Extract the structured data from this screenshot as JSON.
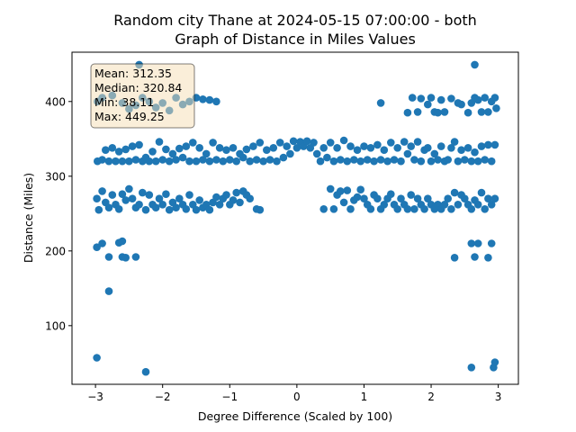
{
  "chart_data": {
    "type": "scatter",
    "title_line1": "Random city Thane at 2024-05-15 07:00:00  - both",
    "title_line2": "Graph of Distance in Miles Values",
    "xlabel": "Degree Difference (Scaled by 100)",
    "ylabel": "Distance (Miles)",
    "xlim": [
      -3.35,
      3.3
    ],
    "ylim": [
      21.5,
      466
    ],
    "xticks": [
      -3,
      -2,
      -1,
      0,
      1,
      2,
      3
    ],
    "yticks": [
      100,
      200,
      300,
      400
    ],
    "marker_color": "#1f77b4",
    "stats": {
      "mean": "Mean: 312.35",
      "median": "Median: 320.84",
      "min": "Min: 38.11",
      "max": "Max: 449.25",
      "box_fill": "#f5deb3",
      "position": "top-left"
    },
    "points": [
      [
        -2.35,
        449.3
      ],
      [
        2.65,
        449.3
      ],
      [
        -2.97,
        400
      ],
      [
        -2.9,
        405
      ],
      [
        -2.75,
        408
      ],
      [
        -2.6,
        398
      ],
      [
        -2.5,
        390
      ],
      [
        -2.4,
        395
      ],
      [
        -2.3,
        405
      ],
      [
        -2.2,
        400
      ],
      [
        -2.1,
        392
      ],
      [
        -2.0,
        398
      ],
      [
        -1.9,
        388
      ],
      [
        -1.8,
        405
      ],
      [
        -1.7,
        396
      ],
      [
        -1.6,
        400
      ],
      [
        -1.5,
        405
      ],
      [
        -1.4,
        403
      ],
      [
        -1.3,
        402
      ],
      [
        -1.2,
        400
      ],
      [
        1.25,
        398
      ],
      [
        1.65,
        385
      ],
      [
        1.72,
        405
      ],
      [
        1.8,
        386
      ],
      [
        1.85,
        404
      ],
      [
        1.95,
        396
      ],
      [
        2.0,
        405
      ],
      [
        2.05,
        386
      ],
      [
        2.1,
        385
      ],
      [
        2.15,
        402
      ],
      [
        2.2,
        386
      ],
      [
        2.3,
        404
      ],
      [
        2.4,
        398
      ],
      [
        2.45,
        396
      ],
      [
        2.55,
        385
      ],
      [
        2.6,
        398
      ],
      [
        2.65,
        405
      ],
      [
        2.7,
        402
      ],
      [
        2.75,
        386
      ],
      [
        2.8,
        405
      ],
      [
        2.85,
        386
      ],
      [
        2.9,
        400
      ],
      [
        2.95,
        405
      ],
      [
        2.97,
        391
      ],
      [
        -2.97,
        320
      ],
      [
        -2.9,
        322
      ],
      [
        -2.85,
        335
      ],
      [
        -2.8,
        320
      ],
      [
        -2.75,
        338
      ],
      [
        -2.7,
        320
      ],
      [
        -2.65,
        333
      ],
      [
        -2.6,
        320
      ],
      [
        -2.55,
        336
      ],
      [
        -2.5,
        320
      ],
      [
        -2.45,
        340
      ],
      [
        -2.4,
        322
      ],
      [
        -2.35,
        342
      ],
      [
        -2.3,
        320
      ],
      [
        -2.25,
        325
      ],
      [
        -2.2,
        320
      ],
      [
        -2.15,
        333
      ],
      [
        -2.1,
        320
      ],
      [
        -2.05,
        346
      ],
      [
        -2.0,
        322
      ],
      [
        -1.95,
        336
      ],
      [
        -1.9,
        320
      ],
      [
        -1.85,
        330
      ],
      [
        -1.8,
        322
      ],
      [
        -1.75,
        337
      ],
      [
        -1.7,
        325
      ],
      [
        -1.65,
        340
      ],
      [
        -1.6,
        320
      ],
      [
        -1.55,
        345
      ],
      [
        -1.5,
        320
      ],
      [
        -1.45,
        338
      ],
      [
        -1.4,
        322
      ],
      [
        -1.35,
        330
      ],
      [
        -1.3,
        320
      ],
      [
        -1.25,
        345
      ],
      [
        -1.2,
        322
      ],
      [
        -1.15,
        338
      ],
      [
        -1.1,
        320
      ],
      [
        -1.05,
        335
      ],
      [
        -1.0,
        322
      ],
      [
        -0.95,
        338
      ],
      [
        -0.9,
        320
      ],
      [
        -0.85,
        330
      ],
      [
        -0.8,
        325
      ],
      [
        -0.75,
        336
      ],
      [
        -0.7,
        320
      ],
      [
        -0.65,
        340
      ],
      [
        -0.6,
        322
      ],
      [
        -0.55,
        345
      ],
      [
        -0.5,
        320
      ],
      [
        -0.45,
        335
      ],
      [
        -0.4,
        322
      ],
      [
        -0.35,
        338
      ],
      [
        -0.3,
        320
      ],
      [
        -0.25,
        345
      ],
      [
        -0.2,
        325
      ],
      [
        -0.15,
        340
      ],
      [
        -0.1,
        330
      ],
      [
        -0.05,
        347
      ],
      [
        0.0,
        338
      ],
      [
        0.05,
        346
      ],
      [
        0.1,
        340
      ],
      [
        0.15,
        347
      ],
      [
        0.2,
        338
      ],
      [
        0.25,
        345
      ],
      [
        0.3,
        330
      ],
      [
        0.35,
        320
      ],
      [
        0.4,
        338
      ],
      [
        0.45,
        325
      ],
      [
        0.5,
        345
      ],
      [
        0.55,
        320
      ],
      [
        0.6,
        338
      ],
      [
        0.65,
        322
      ],
      [
        0.7,
        348
      ],
      [
        0.75,
        320
      ],
      [
        0.8,
        340
      ],
      [
        0.85,
        322
      ],
      [
        0.9,
        335
      ],
      [
        0.95,
        320
      ],
      [
        1.0,
        340
      ],
      [
        1.05,
        322
      ],
      [
        1.1,
        338
      ],
      [
        1.15,
        320
      ],
      [
        1.2,
        342
      ],
      [
        1.25,
        322
      ],
      [
        1.3,
        335
      ],
      [
        1.35,
        320
      ],
      [
        1.4,
        345
      ],
      [
        1.45,
        322
      ],
      [
        1.5,
        338
      ],
      [
        1.55,
        320
      ],
      [
        1.6,
        346
      ],
      [
        1.65,
        330
      ],
      [
        1.7,
        340
      ],
      [
        1.75,
        322
      ],
      [
        1.8,
        346
      ],
      [
        1.85,
        320
      ],
      [
        1.9,
        335
      ],
      [
        1.95,
        338
      ],
      [
        2.0,
        320
      ],
      [
        2.05,
        330
      ],
      [
        2.1,
        322
      ],
      [
        2.15,
        340
      ],
      [
        2.2,
        320
      ],
      [
        2.25,
        322
      ],
      [
        2.3,
        338
      ],
      [
        2.35,
        346
      ],
      [
        2.4,
        320
      ],
      [
        2.45,
        335
      ],
      [
        2.5,
        322
      ],
      [
        2.55,
        338
      ],
      [
        2.6,
        320
      ],
      [
        2.65,
        332
      ],
      [
        2.7,
        320
      ],
      [
        2.75,
        340
      ],
      [
        2.8,
        322
      ],
      [
        2.85,
        342
      ],
      [
        2.9,
        320
      ],
      [
        2.95,
        342
      ],
      [
        -2.98,
        270
      ],
      [
        -2.95,
        255
      ],
      [
        -2.9,
        280
      ],
      [
        -2.85,
        265
      ],
      [
        -2.8,
        258
      ],
      [
        -2.75,
        275
      ],
      [
        -2.7,
        262
      ],
      [
        -2.65,
        256
      ],
      [
        -2.6,
        276
      ],
      [
        -2.55,
        268
      ],
      [
        -2.5,
        283
      ],
      [
        -2.45,
        270
      ],
      [
        -2.4,
        258
      ],
      [
        -2.35,
        262
      ],
      [
        -2.3,
        278
      ],
      [
        -2.25,
        255
      ],
      [
        -2.2,
        275
      ],
      [
        -2.15,
        262
      ],
      [
        -2.1,
        258
      ],
      [
        -2.05,
        270
      ],
      [
        -2.0,
        262
      ],
      [
        -1.95,
        276
      ],
      [
        -1.9,
        255
      ],
      [
        -1.85,
        265
      ],
      [
        -1.8,
        258
      ],
      [
        -1.75,
        270
      ],
      [
        -1.7,
        262
      ],
      [
        -1.65,
        256
      ],
      [
        -1.6,
        275
      ],
      [
        -1.55,
        262
      ],
      [
        -1.5,
        255
      ],
      [
        -1.45,
        268
      ],
      [
        -1.4,
        258
      ],
      [
        -1.35,
        262
      ],
      [
        -1.3,
        255
      ],
      [
        -1.25,
        265
      ],
      [
        -1.2,
        272
      ],
      [
        -1.15,
        262
      ],
      [
        -1.1,
        270
      ],
      [
        -1.05,
        275
      ],
      [
        -1.0,
        262
      ],
      [
        -0.95,
        268
      ],
      [
        -0.9,
        278
      ],
      [
        -0.85,
        265
      ],
      [
        -0.8,
        280
      ],
      [
        -0.75,
        275
      ],
      [
        -0.7,
        270
      ],
      [
        -0.6,
        256
      ],
      [
        -0.55,
        255
      ],
      [
        0.4,
        256
      ],
      [
        0.5,
        283
      ],
      [
        0.55,
        256
      ],
      [
        0.6,
        275
      ],
      [
        0.65,
        280
      ],
      [
        0.7,
        265
      ],
      [
        0.75,
        281
      ],
      [
        0.8,
        256
      ],
      [
        0.85,
        268
      ],
      [
        0.9,
        272
      ],
      [
        0.95,
        282
      ],
      [
        1.0,
        270
      ],
      [
        1.05,
        262
      ],
      [
        1.1,
        256
      ],
      [
        1.15,
        275
      ],
      [
        1.2,
        270
      ],
      [
        1.25,
        256
      ],
      [
        1.3,
        262
      ],
      [
        1.35,
        270
      ],
      [
        1.4,
        276
      ],
      [
        1.45,
        262
      ],
      [
        1.5,
        256
      ],
      [
        1.55,
        270
      ],
      [
        1.6,
        262
      ],
      [
        1.65,
        256
      ],
      [
        1.7,
        275
      ],
      [
        1.75,
        256
      ],
      [
        1.8,
        270
      ],
      [
        1.85,
        262
      ],
      [
        1.9,
        256
      ],
      [
        1.95,
        270
      ],
      [
        2.0,
        262
      ],
      [
        2.05,
        256
      ],
      [
        2.1,
        262
      ],
      [
        2.15,
        256
      ],
      [
        2.2,
        262
      ],
      [
        2.25,
        270
      ],
      [
        2.3,
        256
      ],
      [
        2.35,
        278
      ],
      [
        2.4,
        262
      ],
      [
        2.45,
        275
      ],
      [
        2.5,
        270
      ],
      [
        2.55,
        262
      ],
      [
        2.6,
        256
      ],
      [
        2.65,
        268
      ],
      [
        2.7,
        262
      ],
      [
        2.75,
        278
      ],
      [
        2.8,
        256
      ],
      [
        2.85,
        270
      ],
      [
        2.9,
        262
      ],
      [
        2.95,
        270
      ],
      [
        -2.98,
        205
      ],
      [
        -2.9,
        210
      ],
      [
        -2.8,
        192
      ],
      [
        -2.65,
        211
      ],
      [
        -2.6,
        213
      ],
      [
        -2.6,
        192
      ],
      [
        -2.55,
        191
      ],
      [
        -2.4,
        192
      ],
      [
        -2.8,
        146
      ],
      [
        -2.98,
        57
      ],
      [
        -2.25,
        38.1
      ],
      [
        2.35,
        191
      ],
      [
        2.6,
        210
      ],
      [
        2.65,
        192
      ],
      [
        2.7,
        210
      ],
      [
        2.85,
        191
      ],
      [
        2.9,
        210
      ],
      [
        2.6,
        44
      ],
      [
        2.93,
        44
      ],
      [
        2.95,
        51
      ]
    ]
  }
}
